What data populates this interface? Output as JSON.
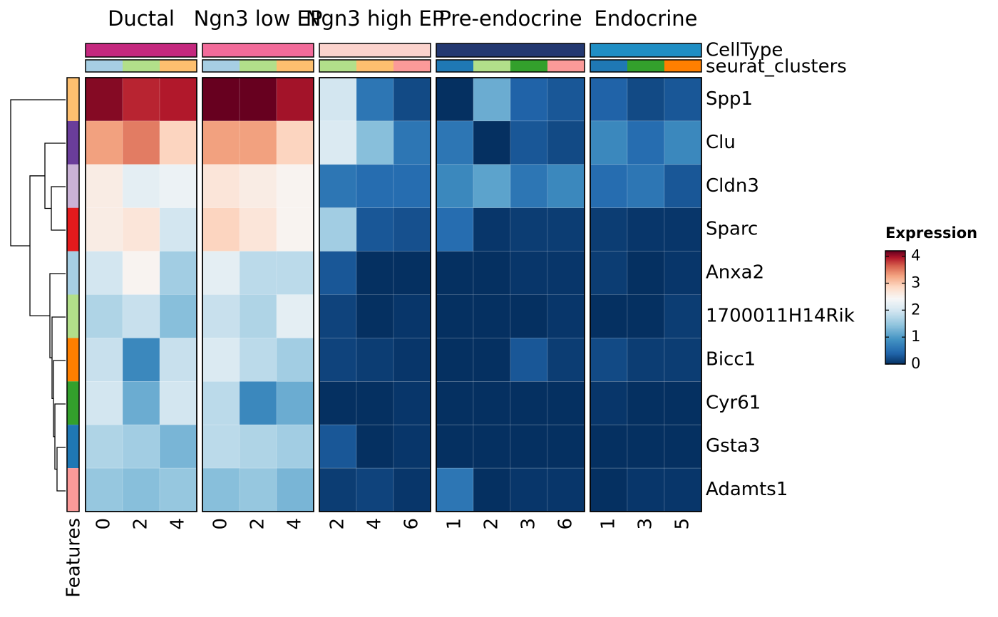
{
  "chart_data": {
    "type": "heatmap",
    "groups": [
      {
        "name": "Ductal",
        "color": "#c4287e",
        "columns": [
          "0",
          "2",
          "4"
        ]
      },
      {
        "name": "Ngn3 low EP",
        "color": "#f26b9a",
        "columns": [
          "0",
          "2",
          "4"
        ]
      },
      {
        "name": "Ngn3 high EP",
        "color": "#fbd3cd",
        "columns": [
          "2",
          "4",
          "6"
        ]
      },
      {
        "name": "Pre-endocrine",
        "color": "#233870",
        "columns": [
          "1",
          "2",
          "3",
          "6"
        ]
      },
      {
        "name": "Endocrine",
        "color": "#1f8ec4",
        "columns": [
          "1",
          "3",
          "5"
        ]
      }
    ],
    "cluster_colors": {
      "0": "#a6cee3",
      "1": "#1f78b4",
      "2": "#b2df8a",
      "3": "#33a02c",
      "4": "#fdbf6f",
      "5": "#ff7f00",
      "6": "#fb9a99"
    },
    "annotation_labels": [
      "CellType",
      "seurat_clusters"
    ],
    "row_annotation_label": "Features",
    "rows": [
      "Spp1",
      "Clu",
      "Cldn3",
      "Sparc",
      "Anxa2",
      "1700011H14Rik",
      "Bicc1",
      "Cyr61",
      "Gsta3",
      "Adamts1"
    ],
    "row_colors": [
      "#fdbf6f",
      "#6a3d9a",
      "#cab2d6",
      "#e31a1c",
      "#a6cee3",
      "#b2df8a",
      "#ff7f00",
      "#33a02c",
      "#1f78b4",
      "#fb9a99"
    ],
    "values": [
      [
        4.1,
        3.9,
        3.95,
        4.2,
        4.2,
        4.0,
        2.0,
        0.6,
        0.2,
        0.0,
        1.2,
        0.4,
        0.3,
        0.4,
        0.2,
        0.3
      ],
      [
        3.3,
        3.5,
        2.9,
        3.3,
        3.3,
        2.9,
        2.1,
        1.4,
        0.6,
        0.6,
        0.0,
        0.3,
        0.2,
        0.8,
        0.5,
        0.8
      ],
      [
        2.6,
        2.2,
        2.3,
        2.7,
        2.6,
        2.5,
        0.6,
        0.5,
        0.5,
        0.8,
        1.1,
        0.6,
        0.8,
        0.5,
        0.6,
        0.3
      ],
      [
        2.6,
        2.7,
        2.0,
        2.9,
        2.7,
        2.5,
        1.6,
        0.3,
        0.25,
        0.5,
        0.05,
        0.1,
        0.1,
        0.1,
        0.05,
        0.05
      ],
      [
        2.0,
        2.5,
        1.6,
        2.2,
        1.8,
        1.8,
        0.3,
        0.0,
        0.0,
        0.0,
        0.0,
        0.05,
        0.05,
        0.1,
        0.0,
        0.05
      ],
      [
        1.7,
        1.9,
        1.4,
        1.9,
        1.7,
        2.2,
        0.15,
        0.0,
        0.05,
        0.0,
        0.0,
        0.0,
        0.05,
        0.0,
        0.0,
        0.1
      ],
      [
        1.9,
        0.8,
        1.9,
        2.1,
        1.8,
        1.6,
        0.15,
        0.1,
        0.05,
        0.0,
        0.0,
        0.3,
        0.1,
        0.2,
        0.1,
        0.1
      ],
      [
        2.0,
        1.2,
        2.0,
        1.8,
        0.8,
        1.2,
        0.0,
        0.0,
        0.05,
        0.0,
        0.0,
        0.0,
        0.0,
        0.05,
        0.0,
        0.0
      ],
      [
        1.7,
        1.6,
        1.3,
        1.8,
        1.7,
        1.6,
        0.3,
        0.0,
        0.05,
        0.0,
        0.0,
        0.0,
        0.0,
        0.0,
        0.0,
        0.0
      ],
      [
        1.5,
        1.4,
        1.5,
        1.4,
        1.5,
        1.3,
        0.1,
        0.15,
        0.05,
        0.6,
        0.0,
        0.05,
        0.05,
        0.0,
        0.05,
        0.05
      ]
    ],
    "colorbar": {
      "title": "Expression",
      "lim": [
        0,
        4.2
      ],
      "ticks": [
        0,
        1,
        2,
        3,
        4
      ]
    }
  }
}
